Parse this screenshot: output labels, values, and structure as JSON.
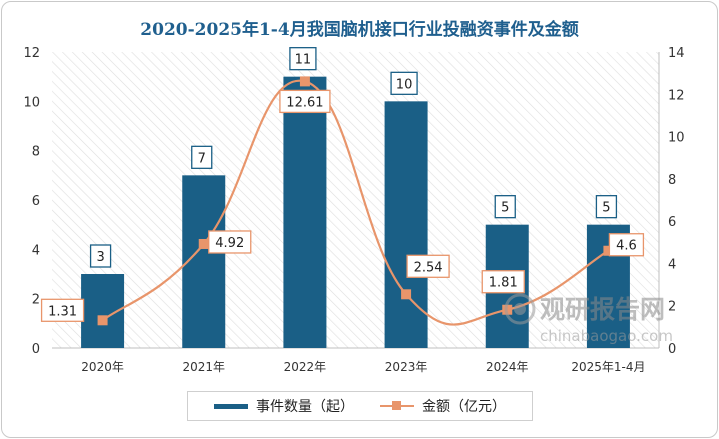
{
  "chart_data": {
    "type": "bar",
    "title": "2020-2025年1-4月我国脑机接口行业投融资事件及金额",
    "categories": [
      "2020年",
      "2021年",
      "2022年",
      "2023年",
      "2024年",
      "2025年1-4月"
    ],
    "series": [
      {
        "name": "事件数量（起）",
        "type": "bar",
        "axis": "left",
        "color": "#1a5f86",
        "values": [
          3,
          7,
          11,
          10,
          5,
          5
        ]
      },
      {
        "name": "金额（亿元）",
        "type": "line",
        "axis": "right",
        "color": "#e8956b",
        "values": [
          1.31,
          4.92,
          12.61,
          2.54,
          1.81,
          4.6
        ]
      }
    ],
    "y_left": {
      "min": 0,
      "max": 12,
      "ticks": [
        0,
        2,
        4,
        6,
        8,
        10,
        12
      ]
    },
    "y_right": {
      "min": 0,
      "max": 14,
      "ticks": [
        0,
        2,
        4,
        6,
        8,
        10,
        12,
        14
      ]
    },
    "bar_labels": [
      "3",
      "7",
      "11",
      "10",
      "5",
      "5"
    ],
    "line_labels": [
      "1.31",
      "4.92",
      "12.61",
      "2.54",
      "1.81",
      "4.6"
    ],
    "legend_position": "bottom",
    "grid": false
  },
  "watermark": {
    "brand": "观研报告网",
    "url": "chinabaogao.com"
  }
}
